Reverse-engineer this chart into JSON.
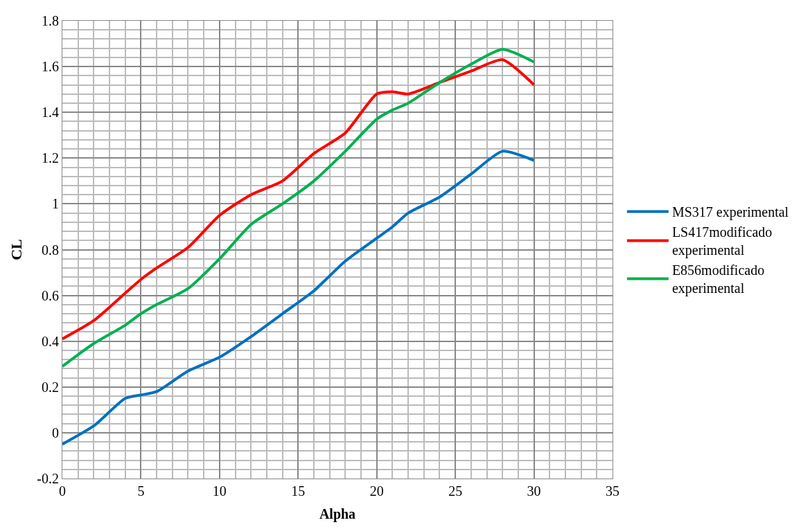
{
  "chart_data": {
    "type": "line",
    "xlabel": "Alpha",
    "ylabel": "CL",
    "x": [
      0,
      2,
      4,
      5,
      6,
      8,
      10,
      12,
      14,
      16,
      18,
      20,
      21,
      22,
      24,
      26,
      28,
      30
    ],
    "series": [
      {
        "name": "MS317 experimental",
        "color": "#0070c0",
        "values": [
          -0.05,
          0.03,
          0.15,
          0.165,
          0.18,
          0.27,
          0.33,
          0.42,
          0.52,
          0.62,
          0.75,
          0.85,
          0.9,
          0.96,
          1.03,
          1.13,
          1.23,
          1.19
        ]
      },
      {
        "name": "LS417modificado experimental",
        "color": "#ff0000",
        "values": [
          0.41,
          0.49,
          0.61,
          0.67,
          0.72,
          0.81,
          0.95,
          1.04,
          1.1,
          1.22,
          1.31,
          1.48,
          1.49,
          1.48,
          1.53,
          1.58,
          1.63,
          1.52
        ]
      },
      {
        "name": "E856modificado experimental",
        "color": "#00b050",
        "values": [
          0.29,
          0.39,
          0.47,
          0.52,
          0.56,
          0.63,
          0.76,
          0.91,
          1.0,
          1.1,
          1.23,
          1.37,
          1.41,
          1.44,
          1.53,
          1.61,
          1.675,
          1.62
        ]
      }
    ],
    "xlim": [
      0,
      35
    ],
    "xticks": [
      0,
      5,
      10,
      15,
      20,
      25,
      30,
      35
    ],
    "ylim": [
      -0.2,
      1.8
    ],
    "yticks": [
      -0.2,
      0,
      0.2,
      0.4,
      0.6,
      0.8,
      1,
      1.2,
      1.4,
      1.6,
      1.8
    ],
    "grid": true,
    "legend": "right",
    "marker": "none",
    "line_style": "solid"
  }
}
